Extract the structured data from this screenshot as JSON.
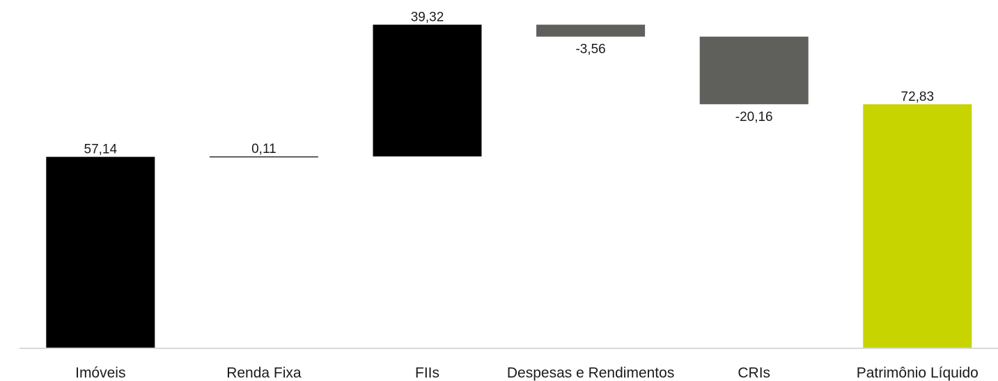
{
  "chart_data": {
    "type": "bar",
    "subtype": "waterfall",
    "title": "",
    "xlabel": "",
    "ylabel": "",
    "categories": [
      "Imóveis",
      "Renda Fixa",
      "FIIs",
      "Despesas e Rendimentos",
      "CRIs",
      "Patrimônio Líquido"
    ],
    "values": [
      57.14,
      0.11,
      39.32,
      -3.56,
      -20.16,
      72.83
    ],
    "value_labels": [
      "57,14",
      "0,11",
      "39,32",
      "-3,56",
      "-20,16",
      "72,83"
    ],
    "bar_kinds": [
      "base",
      "step",
      "step",
      "step",
      "step",
      "total"
    ],
    "ylim": [
      0,
      100
    ],
    "grid": false,
    "legend": "none",
    "colors": {
      "positive": "#000000",
      "negative": "#5f5f5c",
      "total": "#c8d400",
      "axis": "#d9d9d9",
      "text": "#1a1a1a"
    }
  }
}
